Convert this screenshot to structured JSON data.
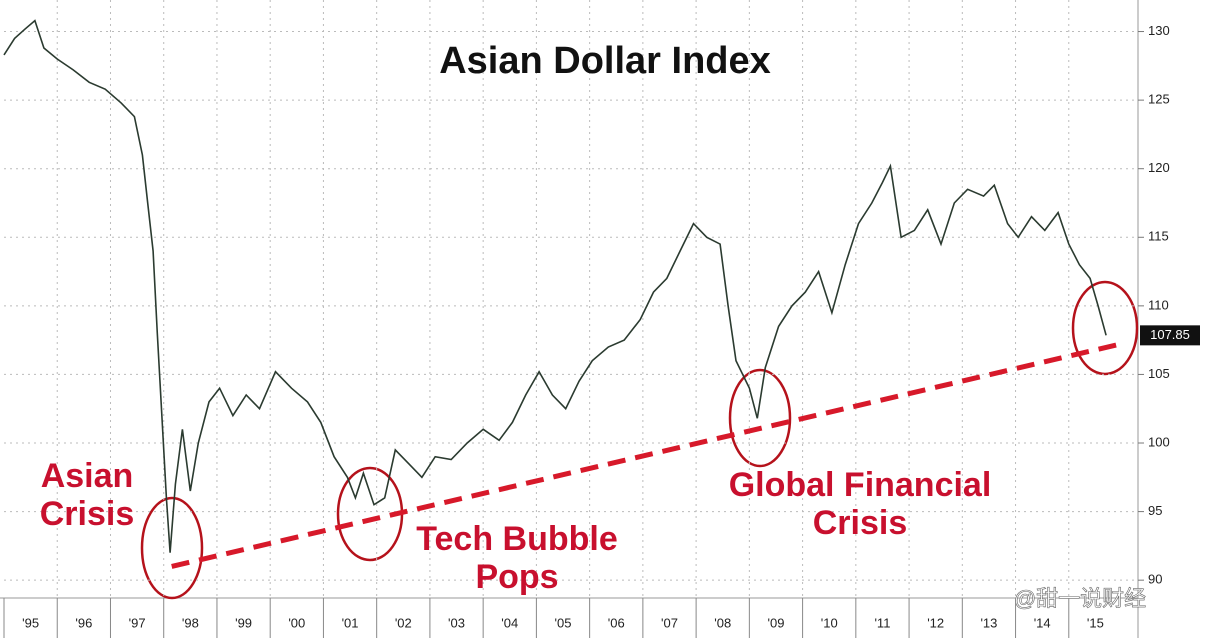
{
  "chart_data": {
    "type": "line",
    "title": "Asian Dollar Index",
    "x": [
      1995.0,
      1995.2,
      1995.4,
      1995.58,
      1995.75,
      1996.0,
      1996.3,
      1996.6,
      1996.9,
      1997.2,
      1997.45,
      1997.6,
      1997.7,
      1997.8,
      1997.88,
      1997.95,
      1998.05,
      1998.12,
      1998.22,
      1998.35,
      1998.5,
      1998.65,
      1998.85,
      1999.05,
      1999.3,
      1999.55,
      1999.8,
      2000.1,
      2000.4,
      2000.7,
      2000.95,
      2001.2,
      2001.45,
      2001.6,
      2001.75,
      2001.95,
      2002.15,
      2002.35,
      2002.6,
      2002.85,
      2003.1,
      2003.4,
      2003.7,
      2004.0,
      2004.3,
      2004.55,
      2004.8,
      2005.05,
      2005.3,
      2005.55,
      2005.8,
      2006.05,
      2006.35,
      2006.65,
      2006.95,
      2007.2,
      2007.45,
      2007.7,
      2007.95,
      2008.2,
      2008.45,
      2008.6,
      2008.75,
      2009.0,
      2009.15,
      2009.3,
      2009.55,
      2009.8,
      2010.05,
      2010.3,
      2010.55,
      2010.8,
      2011.05,
      2011.3,
      2011.5,
      2011.65,
      2011.85,
      2012.1,
      2012.35,
      2012.6,
      2012.85,
      2013.1,
      2013.4,
      2013.6,
      2013.85,
      2014.05,
      2014.3,
      2014.55,
      2014.8,
      2015.0,
      2015.2,
      2015.4,
      2015.55,
      2015.7
    ],
    "series": [
      {
        "name": "Asian Dollar Index",
        "color": "#2b3b30",
        "values": [
          128.3,
          129.5,
          130.2,
          130.8,
          128.8,
          128.0,
          127.2,
          126.3,
          125.8,
          124.8,
          123.8,
          121.0,
          117.5,
          114.0,
          108.0,
          103.0,
          96.0,
          92.0,
          97.0,
          101.0,
          96.5,
          100.0,
          103.0,
          104.0,
          102.0,
          103.5,
          102.5,
          105.2,
          104.0,
          103.0,
          101.5,
          99.0,
          97.5,
          96.0,
          97.8,
          95.5,
          96.0,
          99.5,
          98.5,
          97.5,
          99.0,
          98.8,
          100.0,
          101.0,
          100.2,
          101.5,
          103.5,
          105.2,
          103.5,
          102.5,
          104.5,
          106.0,
          107.0,
          107.5,
          109.0,
          111.0,
          112.0,
          114.0,
          116.0,
          115.0,
          114.5,
          110.0,
          106.0,
          104.0,
          101.8,
          105.5,
          108.5,
          110.0,
          111.0,
          112.5,
          109.5,
          113.0,
          116.0,
          117.5,
          119.0,
          120.2,
          115.0,
          115.5,
          117.0,
          114.5,
          117.5,
          118.5,
          118.0,
          118.8,
          116.0,
          115.0,
          116.5,
          115.5,
          116.8,
          114.5,
          113.0,
          112.0,
          110.0,
          107.85
        ]
      }
    ],
    "trendline": {
      "x": [
        1998.15,
        2015.95
      ],
      "values": [
        91.0,
        107.2
      ],
      "color": "#d7192a"
    },
    "xlim": [
      1995,
      2016.3
    ],
    "xticks": [
      {
        "value": 1995,
        "label": "'95"
      },
      {
        "value": 1996,
        "label": "'96"
      },
      {
        "value": 1997,
        "label": "'97"
      },
      {
        "value": 1998,
        "label": "'98"
      },
      {
        "value": 1999,
        "label": "'99"
      },
      {
        "value": 2000,
        "label": "'00"
      },
      {
        "value": 2001,
        "label": "'01"
      },
      {
        "value": 2002,
        "label": "'02"
      },
      {
        "value": 2003,
        "label": "'03"
      },
      {
        "value": 2004,
        "label": "'04"
      },
      {
        "value": 2005,
        "label": "'05"
      },
      {
        "value": 2006,
        "label": "'06"
      },
      {
        "value": 2007,
        "label": "'07"
      },
      {
        "value": 2008,
        "label": "'08"
      },
      {
        "value": 2009,
        "label": "'09"
      },
      {
        "value": 2010,
        "label": "'10"
      },
      {
        "value": 2011,
        "label": "'11"
      },
      {
        "value": 2012,
        "label": "'12"
      },
      {
        "value": 2013,
        "label": "'13"
      },
      {
        "value": 2014,
        "label": "'14"
      },
      {
        "value": 2015,
        "label": "'15"
      }
    ],
    "ylim": [
      88.7,
      132.3
    ],
    "yticks": [
      90,
      95,
      100,
      105,
      110,
      115,
      120,
      125,
      130
    ],
    "grid": true,
    "annotations": [
      {
        "lines": [
          "Asian",
          "Crisis"
        ]
      },
      {
        "lines": [
          "Tech Bubble",
          "Pops"
        ]
      },
      {
        "lines": [
          "Global Financial",
          "Crisis"
        ]
      }
    ],
    "watermark": "@甜一说财经"
  }
}
